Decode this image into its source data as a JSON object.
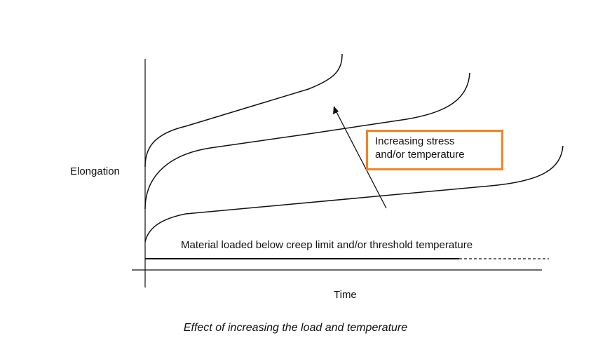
{
  "diagram": {
    "y_axis_label": "Elongation",
    "x_axis_label": "Time",
    "caption": "Effect of increasing the load and temperature",
    "annotation_lines": [
      "Increasing stress",
      "and/or temperature"
    ],
    "baseline_label": "Material loaded below creep limit and/or threshold temperature",
    "colors": {
      "highlight_box": "#f58220",
      "lines": "#111111"
    }
  }
}
